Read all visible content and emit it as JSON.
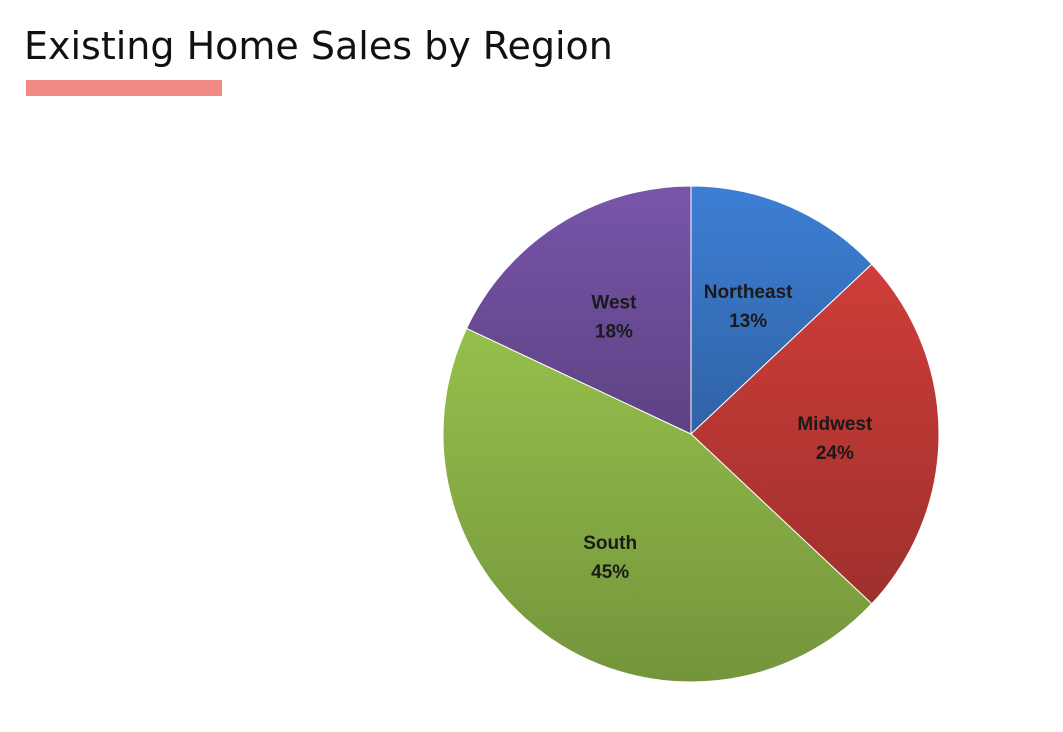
{
  "slide": {
    "title": "Existing Home Sales by Region",
    "accent_color": "#F28B85"
  },
  "chart_data": {
    "type": "pie",
    "title": "Existing Home Sales by Region",
    "slices": [
      {
        "label": "Northeast",
        "value": 13,
        "value_label": "13%",
        "color": "#3A78C9"
      },
      {
        "label": "Midwest",
        "value": 24,
        "value_label": "24%",
        "color": "#C23A36"
      },
      {
        "label": "South",
        "value": 45,
        "value_label": "45%",
        "color": "#8DB548"
      },
      {
        "label": "West",
        "value": 18,
        "value_label": "18%",
        "color": "#7150A0"
      }
    ],
    "start_angle_deg": 0,
    "direction": "clockwise",
    "legend": "none"
  }
}
